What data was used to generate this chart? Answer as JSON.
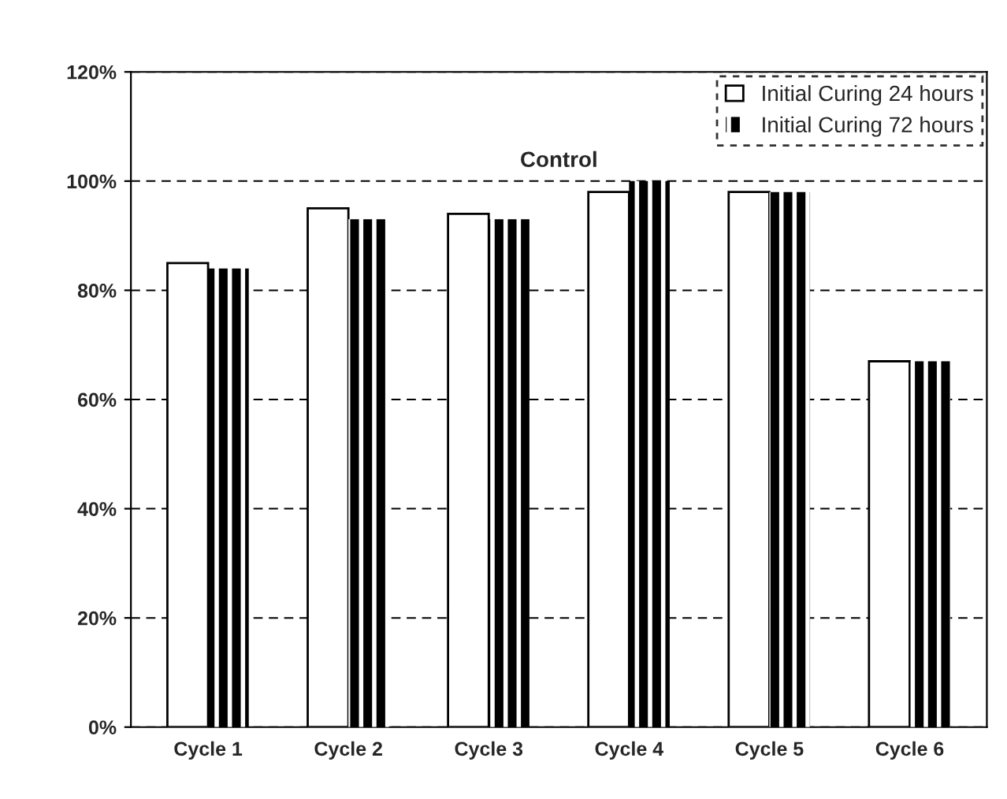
{
  "chart_data": {
    "type": "bar",
    "title": "Control",
    "categories": [
      "Cycle 1",
      "Cycle 2",
      "Cycle 3",
      "Cycle 4",
      "Cycle 5",
      "Cycle 6"
    ],
    "series": [
      {
        "name": "Initial Curing 24 hours",
        "color": "#ffffff",
        "values": [
          85,
          95,
          94,
          98,
          98,
          67
        ]
      },
      {
        "name": "Initial Curing 72 hours",
        "color": "#000000",
        "values": [
          84,
          93,
          93,
          100,
          98,
          67
        ]
      }
    ],
    "ylim": [
      0,
      120
    ],
    "yticks": [
      {
        "value": 0,
        "label": "0%"
      },
      {
        "value": 20,
        "label": "20%"
      },
      {
        "value": 40,
        "label": "40%"
      },
      {
        "value": 60,
        "label": "60%"
      },
      {
        "value": 80,
        "label": "80%"
      },
      {
        "value": 100,
        "label": "100%"
      },
      {
        "value": 120,
        "label": "120%"
      }
    ],
    "grid": "y",
    "legend": "top right"
  }
}
